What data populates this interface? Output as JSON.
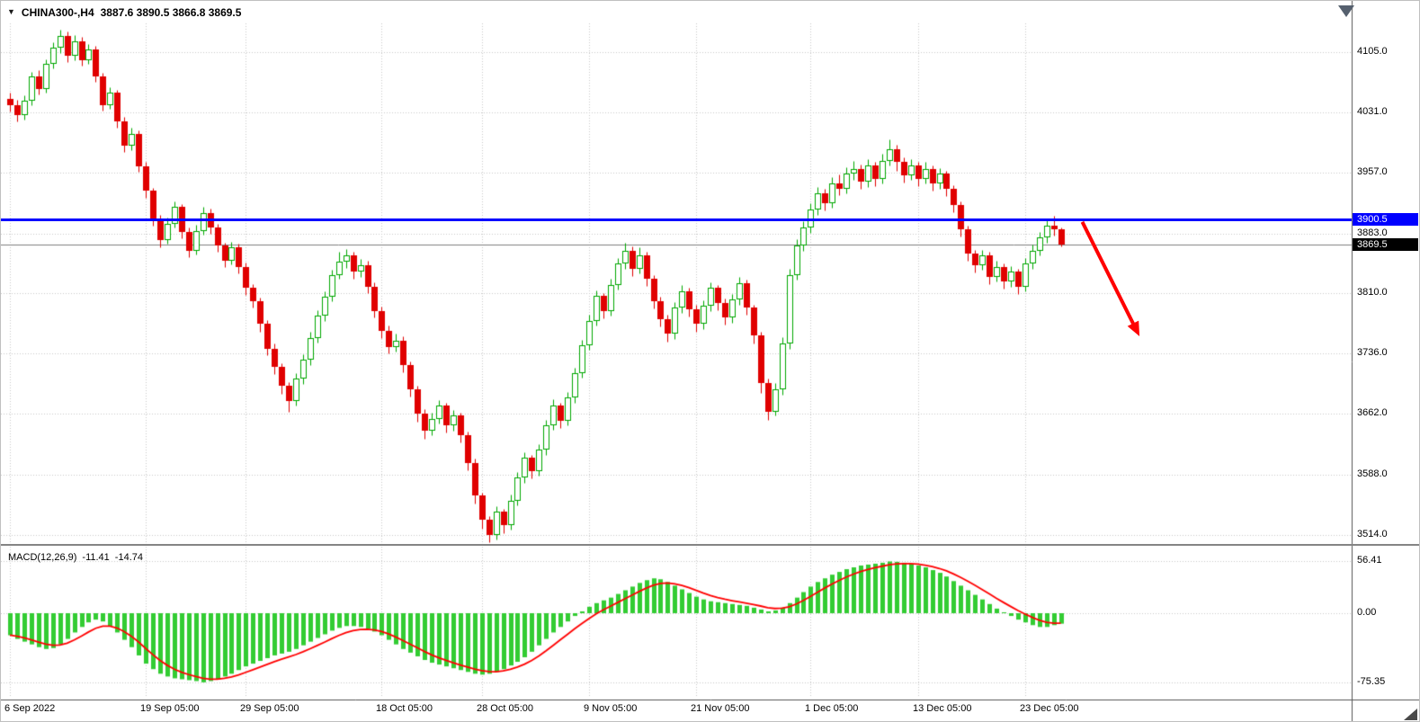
{
  "header": {
    "dropdown_glyph": "▼",
    "symbol": "CHINA300-,H4",
    "ohlc": "3887.6 3890.5 3866.8 3869.5"
  },
  "tags": {
    "hline": "3900.5",
    "bid": "3869.5"
  },
  "macd": {
    "label": "MACD(12,26,9)",
    "value_main": "-11.41",
    "value_signal": "-14.74"
  },
  "price_axis_labels": [
    {
      "text": "4105.0",
      "value": 4105.0
    },
    {
      "text": "4031.0",
      "value": 4031.0
    },
    {
      "text": "3957.0",
      "value": 3957.0
    },
    {
      "text": "3883.0",
      "value": 3883.0
    },
    {
      "text": "3810.0",
      "value": 3810.0
    },
    {
      "text": "3736.0",
      "value": 3736.0
    },
    {
      "text": "3662.0",
      "value": 3662.0
    },
    {
      "text": "3588.0",
      "value": 3588.0
    },
    {
      "text": "3514.0",
      "value": 3514.0
    }
  ],
  "macd_axis_labels": [
    {
      "text": "56.41",
      "value": 56.41
    },
    {
      "text": "0.00",
      "value": 0
    },
    {
      "text": "-75.35",
      "value": -75.35
    }
  ],
  "time_axis_labels": [
    {
      "text": "6 Sep 2022",
      "bar": 0
    },
    {
      "text": "19 Sep 05:00",
      "bar": 19
    },
    {
      "text": "29 Sep 05:00",
      "bar": 33
    },
    {
      "text": "18 Oct 05:00",
      "bar": 52
    },
    {
      "text": "28 Oct 05:00",
      "bar": 66
    },
    {
      "text": "9 Nov 05:00",
      "bar": 81
    },
    {
      "text": "21 Nov 05:00",
      "bar": 96
    },
    {
      "text": "1 Dec 05:00",
      "bar": 112
    },
    {
      "text": "13 Dec 05:00",
      "bar": 127
    },
    {
      "text": "23 Dec 05:00",
      "bar": 142
    }
  ],
  "chart_data": {
    "type": "candlestick_with_macd",
    "symbol": "CHINA300-",
    "timeframe": "H4",
    "current_bar_ohlc": {
      "open": 3887.6,
      "high": 3890.5,
      "low": 3866.8,
      "close": 3869.5
    },
    "bid_price": 3869.5,
    "price_gridlines": [
      4105.0,
      4031.0,
      3957.0,
      3883.0,
      3810.0,
      3736.0,
      3662.0,
      3588.0,
      3514.0
    ],
    "macd_gridlines": [
      56.41,
      0,
      -75.35
    ],
    "macd_values_shown": {
      "macd": -11.41,
      "signal": -14.74
    },
    "colors": {
      "bull_outline": "#00a800",
      "bull_fill": "#ffffff",
      "bear": "#e00000",
      "macd_histogram": "#33cc33",
      "macd_signal": "#ff0000",
      "grid": "#c8c8c8",
      "bid_line": "#808080",
      "hline": "#0000ff",
      "arrow": "#ff0000",
      "axis_border": "#555555"
    },
    "candles": [
      [
        4048,
        4055,
        4032,
        4040
      ],
      [
        4040,
        4047,
        4020,
        4028
      ],
      [
        4028,
        4052,
        4022,
        4045
      ],
      [
        4045,
        4081,
        4040,
        4075
      ],
      [
        4075,
        4083,
        4053,
        4060
      ],
      [
        4060,
        4096,
        4055,
        4090
      ],
      [
        4090,
        4117,
        4085,
        4110
      ],
      [
        4110,
        4132,
        4104,
        4125
      ],
      [
        4125,
        4130,
        4093,
        4100
      ],
      [
        4100,
        4126,
        4095,
        4118
      ],
      [
        4118,
        4123,
        4088,
        4095
      ],
      [
        4095,
        4115,
        4090,
        4108
      ],
      [
        4108,
        4112,
        4068,
        4075
      ],
      [
        4075,
        4080,
        4033,
        4040
      ],
      [
        4040,
        4062,
        4035,
        4055
      ],
      [
        4055,
        4059,
        4012,
        4020
      ],
      [
        4020,
        4025,
        3983,
        3990
      ],
      [
        3990,
        4012,
        3985,
        4005
      ],
      [
        4005,
        4009,
        3958,
        3965
      ],
      [
        3965,
        3970,
        3926,
        3935
      ],
      [
        3935,
        3939,
        3892,
        3900
      ],
      [
        3900,
        3906,
        3866,
        3875
      ],
      [
        3875,
        3902,
        3870,
        3895
      ],
      [
        3895,
        3922,
        3890,
        3915
      ],
      [
        3915,
        3919,
        3877,
        3885
      ],
      [
        3885,
        3890,
        3854,
        3862
      ],
      [
        3862,
        3893,
        3857,
        3886
      ],
      [
        3886,
        3915,
        3881,
        3908
      ],
      [
        3908,
        3913,
        3882,
        3890
      ],
      [
        3890,
        3895,
        3860,
        3868
      ],
      [
        3868,
        3872,
        3842,
        3850
      ],
      [
        3850,
        3873,
        3845,
        3866
      ],
      [
        3866,
        3870,
        3834,
        3842
      ],
      [
        3842,
        3847,
        3808,
        3816
      ],
      [
        3816,
        3821,
        3792,
        3800
      ],
      [
        3800,
        3804,
        3763,
        3772
      ],
      [
        3772,
        3777,
        3734,
        3742
      ],
      [
        3742,
        3748,
        3711,
        3720
      ],
      [
        3720,
        3724,
        3687,
        3696
      ],
      [
        3696,
        3701,
        3665,
        3678
      ],
      [
        3678,
        3712,
        3672,
        3705
      ],
      [
        3705,
        3735,
        3699,
        3728
      ],
      [
        3728,
        3762,
        3722,
        3755
      ],
      [
        3755,
        3789,
        3749,
        3782
      ],
      [
        3782,
        3812,
        3776,
        3805
      ],
      [
        3805,
        3839,
        3800,
        3832
      ],
      [
        3832,
        3860,
        3827,
        3848
      ],
      [
        3848,
        3864,
        3841,
        3856
      ],
      [
        3856,
        3861,
        3828,
        3836
      ],
      [
        3836,
        3852,
        3830,
        3844
      ],
      [
        3844,
        3849,
        3810,
        3818
      ],
      [
        3818,
        3823,
        3780,
        3788
      ],
      [
        3788,
        3793,
        3755,
        3764
      ],
      [
        3764,
        3770,
        3736,
        3744
      ],
      [
        3744,
        3760,
        3738,
        3752
      ],
      [
        3752,
        3757,
        3713,
        3722
      ],
      [
        3722,
        3726,
        3683,
        3692
      ],
      [
        3692,
        3697,
        3653,
        3662
      ],
      [
        3662,
        3668,
        3632,
        3642
      ],
      [
        3642,
        3663,
        3636,
        3656
      ],
      [
        3656,
        3679,
        3650,
        3672
      ],
      [
        3672,
        3676,
        3639,
        3648
      ],
      [
        3648,
        3667,
        3642,
        3660
      ],
      [
        3660,
        3664,
        3627,
        3636
      ],
      [
        3636,
        3640,
        3593,
        3602
      ],
      [
        3602,
        3607,
        3552,
        3562
      ],
      [
        3562,
        3566,
        3521,
        3532
      ],
      [
        3532,
        3537,
        3505,
        3514
      ],
      [
        3514,
        3549,
        3508,
        3542
      ],
      [
        3542,
        3546,
        3516,
        3526
      ],
      [
        3526,
        3563,
        3520,
        3556
      ],
      [
        3556,
        3591,
        3550,
        3584
      ],
      [
        3584,
        3615,
        3578,
        3608
      ],
      [
        3608,
        3612,
        3583,
        3592
      ],
      [
        3592,
        3625,
        3586,
        3618
      ],
      [
        3618,
        3655,
        3612,
        3648
      ],
      [
        3648,
        3680,
        3643,
        3672
      ],
      [
        3672,
        3676,
        3645,
        3654
      ],
      [
        3654,
        3689,
        3648,
        3682
      ],
      [
        3682,
        3719,
        3676,
        3712
      ],
      [
        3712,
        3753,
        3706,
        3746
      ],
      [
        3746,
        3783,
        3740,
        3776
      ],
      [
        3776,
        3813,
        3770,
        3806
      ],
      [
        3806,
        3810,
        3779,
        3788
      ],
      [
        3788,
        3827,
        3782,
        3820
      ],
      [
        3820,
        3853,
        3814,
        3846
      ],
      [
        3846,
        3872,
        3840,
        3862
      ],
      [
        3862,
        3867,
        3831,
        3840
      ],
      [
        3840,
        3866,
        3834,
        3856
      ],
      [
        3856,
        3861,
        3819,
        3828
      ],
      [
        3828,
        3832,
        3791,
        3800
      ],
      [
        3800,
        3805,
        3769,
        3778
      ],
      [
        3778,
        3783,
        3750,
        3760
      ],
      [
        3760,
        3799,
        3754,
        3792
      ],
      [
        3792,
        3820,
        3786,
        3812
      ],
      [
        3812,
        3816,
        3781,
        3790
      ],
      [
        3790,
        3795,
        3763,
        3772
      ],
      [
        3772,
        3801,
        3766,
        3794
      ],
      [
        3794,
        3823,
        3788,
        3816
      ],
      [
        3816,
        3820,
        3789,
        3798
      ],
      [
        3798,
        3803,
        3771,
        3780
      ],
      [
        3780,
        3809,
        3774,
        3802
      ],
      [
        3802,
        3830,
        3796,
        3822
      ],
      [
        3822,
        3826,
        3783,
        3792
      ],
      [
        3792,
        3796,
        3748,
        3758
      ],
      [
        3758,
        3762,
        3688,
        3700
      ],
      [
        3700,
        3705,
        3655,
        3665
      ],
      [
        3665,
        3700,
        3660,
        3692
      ],
      [
        3692,
        3756,
        3686,
        3748
      ],
      [
        3748,
        3840,
        3742,
        3832
      ],
      [
        3832,
        3876,
        3826,
        3868
      ],
      [
        3868,
        3898,
        3862,
        3890
      ],
      [
        3890,
        3920,
        3884,
        3912
      ],
      [
        3912,
        3940,
        3906,
        3932
      ],
      [
        3932,
        3937,
        3911,
        3920
      ],
      [
        3920,
        3952,
        3914,
        3944
      ],
      [
        3944,
        3955,
        3930,
        3938
      ],
      [
        3938,
        3964,
        3932,
        3956
      ],
      [
        3956,
        3972,
        3949,
        3962
      ],
      [
        3962,
        3967,
        3937,
        3946
      ],
      [
        3946,
        3974,
        3940,
        3966
      ],
      [
        3966,
        3971,
        3941,
        3950
      ],
      [
        3950,
        3980,
        3944,
        3972
      ],
      [
        3972,
        3998,
        3966,
        3986
      ],
      [
        3986,
        3991,
        3960,
        3970
      ],
      [
        3970,
        3976,
        3945,
        3954
      ],
      [
        3954,
        3974,
        3948,
        3966
      ],
      [
        3966,
        3970,
        3941,
        3950
      ],
      [
        3950,
        3970,
        3944,
        3962
      ],
      [
        3962,
        3966,
        3935,
        3944
      ],
      [
        3944,
        3963,
        3938,
        3956
      ],
      [
        3956,
        3960,
        3929,
        3938
      ],
      [
        3938,
        3942,
        3909,
        3918
      ],
      [
        3918,
        3922,
        3879,
        3888
      ],
      [
        3888,
        3892,
        3849,
        3858
      ],
      [
        3858,
        3863,
        3835,
        3844
      ],
      [
        3844,
        3863,
        3838,
        3856
      ],
      [
        3856,
        3860,
        3821,
        3830
      ],
      [
        3830,
        3849,
        3824,
        3842
      ],
      [
        3842,
        3846,
        3815,
        3824
      ],
      [
        3824,
        3843,
        3818,
        3836
      ],
      [
        3836,
        3840,
        3809,
        3818
      ],
      [
        3818,
        3853,
        3812,
        3846
      ],
      [
        3846,
        3869,
        3840,
        3862
      ],
      [
        3862,
        3885,
        3856,
        3878
      ],
      [
        3878,
        3899,
        3872,
        3892
      ],
      [
        3892,
        3905,
        3880,
        3887.6
      ],
      [
        3887.6,
        3890.5,
        3866.8,
        3869.5
      ]
    ],
    "macd_histogram": [
      -24,
      -28,
      -31,
      -34,
      -37,
      -39,
      -38,
      -34,
      -28,
      -21,
      -15,
      -10,
      -7,
      -9,
      -14,
      -21,
      -29,
      -37,
      -46,
      -55,
      -61,
      -66,
      -69,
      -71,
      -72,
      -73,
      -74,
      -75.35,
      -74,
      -72,
      -69,
      -66,
      -62,
      -58,
      -55,
      -52,
      -49,
      -46,
      -44,
      -42,
      -39,
      -35,
      -31,
      -27,
      -23,
      -19,
      -16,
      -14,
      -14,
      -15,
      -17,
      -20,
      -24,
      -29,
      -34,
      -39,
      -43,
      -47,
      -51,
      -54,
      -56,
      -58,
      -60,
      -62,
      -64,
      -66,
      -67,
      -66,
      -64,
      -61,
      -57,
      -53,
      -48,
      -42,
      -35,
      -28,
      -21,
      -15,
      -9,
      -3,
      2,
      7,
      11,
      14,
      17,
      21,
      25,
      29,
      33,
      36,
      38,
      37,
      34,
      30,
      26,
      22,
      18,
      15,
      13,
      12,
      11,
      10,
      9,
      8,
      6,
      4,
      2,
      3,
      6,
      11,
      17,
      23,
      29,
      34,
      38,
      42,
      45,
      48,
      50,
      52,
      53,
      54,
      55,
      56.41,
      56,
      55,
      54,
      52,
      50,
      47,
      44,
      40,
      35,
      30,
      25,
      20,
      15,
      10,
      5,
      1,
      -3,
      -7,
      -10,
      -13,
      -15,
      -15,
      -13,
      -11.41
    ],
    "annotations": [
      {
        "type": "horizontal_line",
        "price": 3900.5,
        "color": "#0000ff",
        "width": 3,
        "tag": "3900.5"
      },
      {
        "type": "arrow",
        "color": "#ff0000",
        "width": 4,
        "from_bar": 150,
        "from_price": 3897,
        "to_bar": 158,
        "to_price": 3757
      }
    ]
  }
}
